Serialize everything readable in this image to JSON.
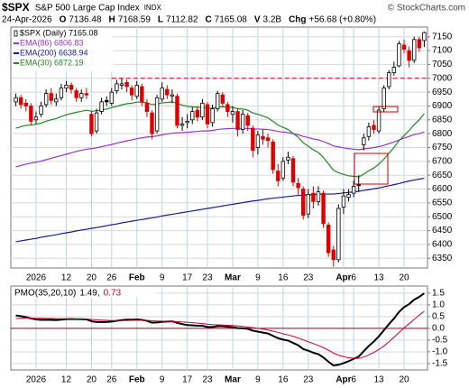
{
  "header": {
    "symbol": "$SPX",
    "name": "S&P 500 Large Cap Index",
    "exchange": "INDX",
    "copyright": "© StockCharts.com",
    "date": "24-Apr-2026",
    "quote": [
      {
        "label": "O",
        "value": "7136.48"
      },
      {
        "label": "H",
        "value": "7168.59"
      },
      {
        "label": "L",
        "value": "7112.82"
      },
      {
        "label": "C",
        "value": "7165.08"
      },
      {
        "label": "V",
        "value": "3.2B"
      },
      {
        "label": "Chg",
        "value": "+56.68 (+0.80%)"
      }
    ]
  },
  "chart_data": [
    {
      "type": "candlestick",
      "name": "$SPX (Daily) 7165.08",
      "up_color": "#000000",
      "down_color": "#dd0000",
      "categories": [
        null,
        null,
        null,
        null,
        "2026",
        null,
        null,
        null,
        null,
        null,
        "12",
        null,
        null,
        null,
        null,
        "20",
        null,
        null,
        null,
        "26",
        null,
        null,
        null,
        null,
        "Feb",
        null,
        null,
        null,
        null,
        "9",
        null,
        null,
        null,
        null,
        "17",
        null,
        null,
        null,
        "23",
        null,
        null,
        null,
        null,
        "Mar",
        null,
        null,
        null,
        null,
        "9",
        null,
        null,
        null,
        null,
        "16",
        null,
        null,
        null,
        null,
        "23",
        null,
        null,
        null,
        null,
        null,
        null,
        "Apr",
        null,
        "6",
        null,
        null,
        null,
        null,
        "13",
        null,
        null,
        null,
        null,
        "20",
        null,
        null,
        null,
        null
      ],
      "open": [
        6915,
        6930,
        6910,
        6900,
        6850,
        6870,
        6905,
        6945,
        6915,
        6930,
        6965,
        6975,
        6955,
        6930,
        6945,
        6870,
        6810,
        6880,
        6920,
        6910,
        6955,
        6975,
        6985,
        6965,
        6935,
        6970,
        6910,
        6875,
        6810,
        6925,
        6960,
        6935,
        6935,
        6830,
        6840,
        6850,
        6885,
        6860,
        6905,
        6840,
        6890,
        6940,
        6905,
        6870,
        6880,
        6815,
        6865,
        6820,
        6750,
        6790,
        6785,
        6770,
        6665,
        6640,
        6705,
        6710,
        6620,
        6600,
        6510,
        6585,
        6555,
        6585,
        6470,
        6380,
        6345,
        6535,
        6570,
        6585,
        6615,
        6760,
        6790,
        6830,
        6810,
        6890,
        6970,
        7020,
        7045,
        7120,
        7100,
        7065,
        7140,
        7136.48
      ],
      "high": [
        6945,
        6940,
        6925,
        6910,
        6880,
        6915,
        6960,
        6965,
        6945,
        6980,
        6990,
        6985,
        6965,
        6960,
        6965,
        6880,
        6890,
        6930,
        6935,
        6965,
        6995,
        7000,
        6995,
        6975,
        6990,
        6980,
        6925,
        6885,
        6940,
        6985,
        6975,
        6960,
        6945,
        6860,
        6870,
        6895,
        6900,
        6925,
        6915,
        6905,
        6955,
        6950,
        6915,
        6900,
        6890,
        6885,
        6875,
        6830,
        6810,
        6815,
        6800,
        6780,
        6690,
        6715,
        6735,
        6720,
        6640,
        6610,
        6600,
        6610,
        6610,
        6595,
        6480,
        6395,
        6545,
        6600,
        6600,
        6630,
        6650,
        6800,
        6840,
        6850,
        6900,
        6975,
        7030,
        7060,
        7135,
        7140,
        7115,
        7150,
        7150,
        7168.59
      ],
      "low": [
        6900,
        6890,
        6880,
        6830,
        6835,
        6860,
        6895,
        6905,
        6900,
        6920,
        6950,
        6945,
        6915,
        6915,
        6925,
        6790,
        6800,
        6870,
        6900,
        6900,
        6945,
        6960,
        6950,
        6920,
        6925,
        6900,
        6860,
        6780,
        6800,
        6915,
        6925,
        6910,
        6820,
        6810,
        6820,
        6835,
        6845,
        6850,
        6820,
        6825,
        6880,
        6895,
        6860,
        6840,
        6790,
        6800,
        6810,
        6715,
        6725,
        6760,
        6750,
        6655,
        6610,
        6630,
        6690,
        6610,
        6580,
        6490,
        6495,
        6530,
        6540,
        6460,
        6355,
        6320,
        6335,
        6510,
        6555,
        6570,
        6590,
        6740,
        6775,
        6800,
        6800,
        6880,
        6960,
        7010,
        7040,
        7090,
        7040,
        7055,
        7095,
        7112.82
      ],
      "close": [
        6930,
        6905,
        6900,
        6845,
        6860,
        6900,
        6945,
        6920,
        6925,
        6965,
        6975,
        6960,
        6930,
        6945,
        6940,
        6800,
        6875,
        6915,
        6915,
        6950,
        6980,
        6980,
        6970,
        6940,
        6975,
        6915,
        6880,
        6800,
        6930,
        6965,
        6940,
        6940,
        6830,
        6835,
        6845,
        6880,
        6860,
        6910,
        6835,
        6890,
        6945,
        6910,
        6880,
        6880,
        6815,
        6870,
        6830,
        6740,
        6795,
        6780,
        6775,
        6670,
        6630,
        6700,
        6715,
        6625,
        6605,
        6505,
        6580,
        6555,
        6590,
        6475,
        6370,
        6345,
        6530,
        6575,
        6580,
        6610,
        6615,
        6785,
        6825,
        6815,
        6885,
        6965,
        7020,
        7040,
        7125,
        7105,
        7065,
        7140,
        7110,
        7165.08
      ],
      "series": [
        {
          "name": "EMA(86) 6806.83",
          "color": "#9933cc",
          "values": [
            6680,
            6685,
            6690,
            6694,
            6697,
            6701,
            6706,
            6711,
            6716,
            6721,
            6726,
            6731,
            6736,
            6740,
            6744,
            6746,
            6749,
            6753,
            6757,
            6761,
            6766,
            6770,
            6774,
            6778,
            6782,
            6785,
            6788,
            6789,
            6792,
            6796,
            6799,
            6802,
            6803,
            6804,
            6805,
            6807,
            6808,
            6810,
            6810,
            6812,
            6815,
            6817,
            6818,
            6819,
            6819,
            6819,
            6819,
            6817,
            6817,
            6816,
            6815,
            6812,
            6808,
            6806,
            6804,
            6800,
            6796,
            6790,
            6786,
            6781,
            6778,
            6772,
            6764,
            6756,
            6752,
            6749,
            6746,
            6744,
            6742,
            6745,
            6747,
            6750,
            6753,
            6758,
            6764,
            6770,
            6777,
            6784,
            6790,
            6797,
            6800,
            6806.83
          ]
        },
        {
          "name": "EMA(200) 6638.94",
          "color": "#1a1a99",
          "values": [
            6410,
            6413,
            6416,
            6419,
            6422,
            6426,
            6429,
            6432,
            6435,
            6439,
            6442,
            6445,
            6449,
            6452,
            6455,
            6458,
            6461,
            6464,
            6468,
            6471,
            6474,
            6478,
            6481,
            6484,
            6487,
            6490,
            6493,
            6496,
            6499,
            6503,
            6506,
            6509,
            6512,
            6515,
            6518,
            6521,
            6524,
            6527,
            6530,
            6533,
            6536,
            6539,
            6542,
            6545,
            6548,
            6551,
            6554,
            6557,
            6559,
            6562,
            6565,
            6567,
            6569,
            6571,
            6573,
            6575,
            6577,
            6578,
            6579,
            6580,
            6581,
            6582,
            6582,
            6582,
            6584,
            6586,
            6588,
            6590,
            6592,
            6595,
            6598,
            6601,
            6604,
            6608,
            6612,
            6616,
            6620,
            6625,
            6629,
            6633,
            6636,
            6638.94
          ]
        },
        {
          "name": "EMA(30) 6872.19",
          "color": "#228822",
          "values": [
            6820,
            6825,
            6830,
            6831,
            6834,
            6838,
            6845,
            6850,
            6855,
            6862,
            6868,
            6873,
            6877,
            6881,
            6885,
            6881,
            6883,
            6886,
            6889,
            6894,
            6899,
            6904,
            6908,
            6910,
            6914,
            6914,
            6912,
            6905,
            6907,
            6911,
            6913,
            6915,
            6909,
            6903,
            6899,
            6897,
            6895,
            6896,
            6892,
            6892,
            6896,
            6897,
            6896,
            6895,
            6890,
            6889,
            6885,
            6875,
            6870,
            6864,
            6857,
            6845,
            6831,
            6823,
            6815,
            6801,
            6787,
            6767,
            6755,
            6742,
            6732,
            6714,
            6691,
            6668,
            6659,
            6653,
            6648,
            6646,
            6644,
            6654,
            6666,
            6676,
            6690,
            6708,
            6729,
            6750,
            6775,
            6793,
            6812,
            6832,
            6850,
            6872.19
          ]
        }
      ],
      "ylim": [
        6315,
        7185
      ],
      "yticks": [
        6350,
        6400,
        6450,
        6500,
        6550,
        6600,
        6650,
        6700,
        6750,
        6800,
        6850,
        6900,
        6950,
        7000,
        7050,
        7100,
        7150
      ],
      "grid": true,
      "reference_line": {
        "value": 7000,
        "color": "#cc0000"
      }
    },
    {
      "type": "line",
      "title": "PMO(35,20,10)",
      "categories": [
        null,
        null,
        null,
        null,
        "2026",
        null,
        null,
        null,
        null,
        null,
        "12",
        null,
        null,
        null,
        null,
        "20",
        null,
        null,
        null,
        "26",
        null,
        null,
        null,
        null,
        "Feb",
        null,
        null,
        null,
        null,
        "9",
        null,
        null,
        null,
        null,
        "17",
        null,
        null,
        null,
        "23",
        null,
        null,
        null,
        null,
        "Mar",
        null,
        null,
        null,
        null,
        "9",
        null,
        null,
        null,
        null,
        "16",
        null,
        null,
        null,
        null,
        "23",
        null,
        null,
        null,
        null,
        null,
        null,
        "Apr",
        null,
        "6",
        null,
        null,
        null,
        null,
        "13",
        null,
        null,
        null,
        null,
        "20",
        null,
        null,
        null,
        null
      ],
      "series": [
        {
          "name": "1.49,",
          "color": "#000000",
          "width": 2,
          "values": [
            0.55,
            0.52,
            0.48,
            0.42,
            0.38,
            0.36,
            0.36,
            0.36,
            0.35,
            0.37,
            0.39,
            0.4,
            0.39,
            0.39,
            0.38,
            0.3,
            0.27,
            0.27,
            0.27,
            0.29,
            0.32,
            0.35,
            0.37,
            0.37,
            0.38,
            0.36,
            0.32,
            0.24,
            0.25,
            0.28,
            0.29,
            0.3,
            0.23,
            0.18,
            0.14,
            0.13,
            0.11,
            0.11,
            0.06,
            0.06,
            0.09,
            0.09,
            0.07,
            0.05,
            0.01,
            0.0,
            -0.02,
            -0.1,
            -0.14,
            -0.18,
            -0.22,
            -0.32,
            -0.42,
            -0.48,
            -0.52,
            -0.62,
            -0.72,
            -0.88,
            -0.95,
            -1.04,
            -1.1,
            -1.24,
            -1.42,
            -1.58,
            -1.55,
            -1.48,
            -1.4,
            -1.3,
            -1.2,
            -0.97,
            -0.75,
            -0.56,
            -0.34,
            -0.08,
            0.18,
            0.42,
            0.7,
            0.9,
            1.03,
            1.22,
            1.34,
            1.49
          ]
        },
        {
          "name": "0.73",
          "color": "#cc0033",
          "width": 1,
          "values": [
            0.42,
            0.43,
            0.44,
            0.44,
            0.43,
            0.43,
            0.42,
            0.42,
            0.41,
            0.41,
            0.41,
            0.41,
            0.4,
            0.4,
            0.4,
            0.38,
            0.36,
            0.35,
            0.34,
            0.33,
            0.33,
            0.33,
            0.33,
            0.34,
            0.34,
            0.34,
            0.34,
            0.32,
            0.31,
            0.31,
            0.3,
            0.3,
            0.29,
            0.27,
            0.26,
            0.24,
            0.22,
            0.2,
            0.18,
            0.16,
            0.15,
            0.14,
            0.13,
            0.12,
            0.1,
            0.08,
            0.06,
            0.03,
            0.0,
            -0.03,
            -0.07,
            -0.12,
            -0.17,
            -0.23,
            -0.28,
            -0.34,
            -0.41,
            -0.49,
            -0.57,
            -0.65,
            -0.73,
            -0.82,
            -0.93,
            -1.05,
            -1.14,
            -1.2,
            -1.25,
            -1.27,
            -1.28,
            -1.22,
            -1.13,
            -1.03,
            -0.9,
            -0.75,
            -0.57,
            -0.38,
            -0.18,
            0.02,
            0.2,
            0.38,
            0.56,
            0.73
          ]
        }
      ],
      "ylim": [
        -1.77,
        1.8
      ],
      "yticks": [
        1.5,
        {
          "value": 1,
          "label": "1.0"
        },
        0.5,
        {
          "value": 0,
          "label": "0.0"
        },
        -0.5,
        {
          "value": -1,
          "label": "-1.0"
        },
        -1.5
      ],
      "grid": true,
      "reference_line": {
        "value": 0,
        "color": "#aa0022"
      }
    }
  ]
}
